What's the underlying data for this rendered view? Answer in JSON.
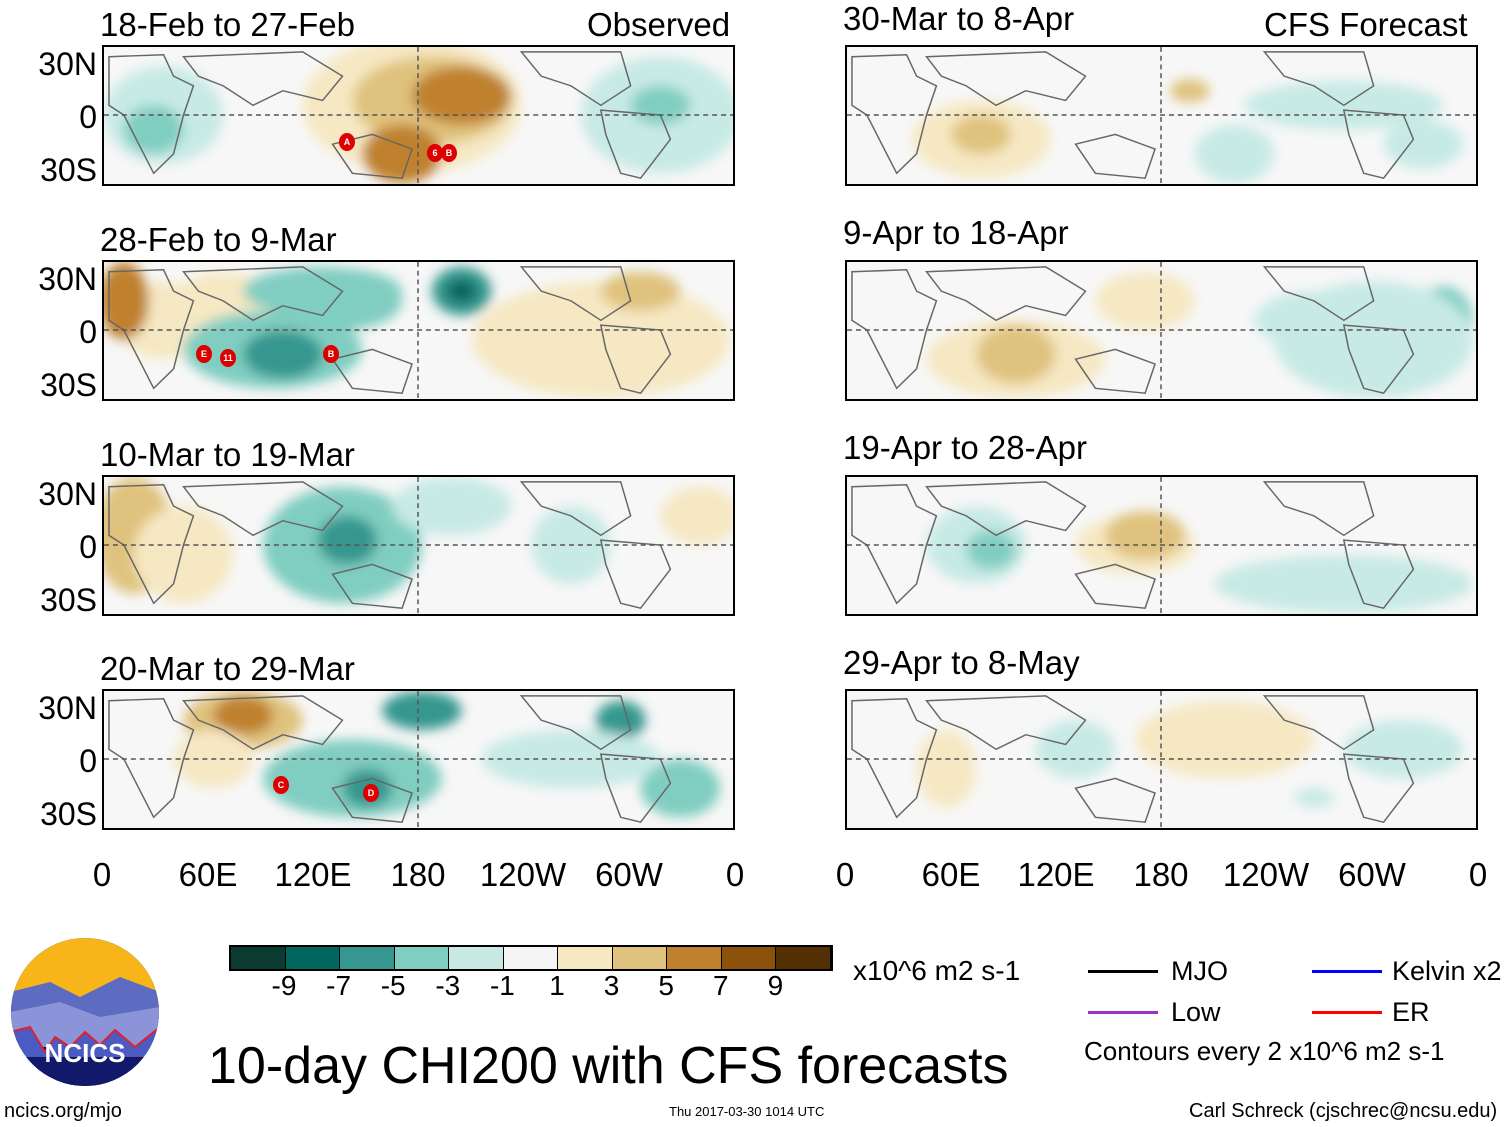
{
  "figure_title": "10-day CHI200 with CFS forecasts",
  "left_column_label": "Observed",
  "right_column_label": "CFS Forecast",
  "panels_left": [
    {
      "title": "18-Feb to 27-Feb",
      "storms": [
        "A",
        "6",
        "B"
      ]
    },
    {
      "title": "28-Feb to 9-Mar",
      "storms": [
        "E",
        "11",
        "B"
      ]
    },
    {
      "title": "10-Mar to 19-Mar",
      "storms": []
    },
    {
      "title": "20-Mar to 29-Mar",
      "storms": [
        "C",
        "D"
      ]
    }
  ],
  "panels_right": [
    {
      "title": "30-Mar to 8-Apr"
    },
    {
      "title": "9-Apr to 18-Apr"
    },
    {
      "title": "19-Apr to 28-Apr"
    },
    {
      "title": "29-Apr to 8-May"
    }
  ],
  "lat_labels": [
    "30N",
    "0",
    "30S"
  ],
  "lon_labels": [
    "0",
    "60E",
    "120E",
    "180",
    "120W",
    "60W",
    "0"
  ],
  "colorbar": {
    "colors": [
      "#0b3b30",
      "#01665e",
      "#35978f",
      "#80cdc1",
      "#c7eae5",
      "#f5f5f5",
      "#f6e8c3",
      "#dfc27d",
      "#bf812d",
      "#8c510a",
      "#543005"
    ],
    "labels": [
      "-9",
      "-7",
      "-5",
      "-3",
      "-1",
      "1",
      "3",
      "5",
      "7",
      "9"
    ],
    "units": "x10^6 m2 s-1"
  },
  "legend": [
    {
      "label": "MJO",
      "color": "#000000"
    },
    {
      "label": "Kelvin x2",
      "color": "#0000ff"
    },
    {
      "label": "Low",
      "color": "#9933cc"
    },
    {
      "label": "ER",
      "color": "#ff0000"
    }
  ],
  "contour_note": "Contours every 2 x10^6 m2 s-1",
  "logo_text": "NCICS",
  "url": "ncics.org/mjo",
  "timestamp": "Thu 2017-03-30 1014 UTC",
  "credit": "Carl Schreck (cjschrec@ncsu.edu)"
}
